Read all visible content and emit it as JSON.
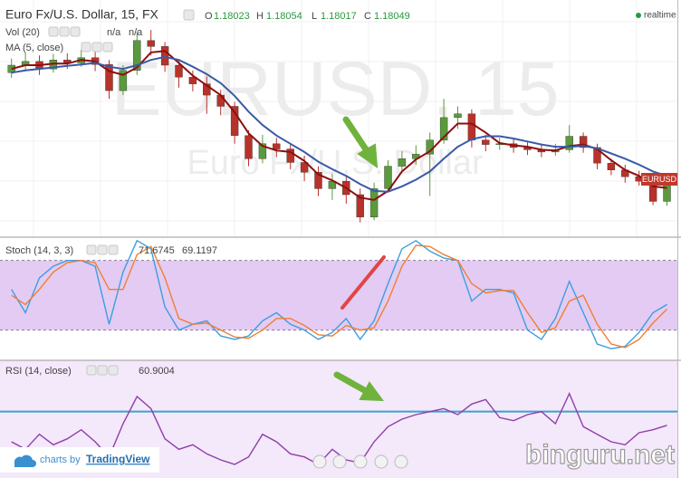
{
  "chart_data": [
    {
      "type": "candlestick",
      "title": "Euro Fx/U.S. Dollar, 15, FX",
      "ohlc_labels": [
        "O",
        "H",
        "L",
        "C"
      ],
      "status": "realtime",
      "volume_title": "Vol (20)",
      "volume_values": [
        "n/a",
        "n/a"
      ],
      "watermark": "EURUSD, 15",
      "watermark_subtitle": "Euro Fx/U.S. Dollar",
      "symbol_label": "EURUSD",
      "ylim": [
        1.1798,
        1.1828
      ],
      "grid": true,
      "up_color": "#5a9a3c",
      "down_color": "#b8322a",
      "open": [
        1.18195,
        1.18205,
        1.1821,
        1.182,
        1.18212,
        1.18208,
        1.18215,
        1.18206,
        1.18171,
        1.18198,
        1.18238,
        1.1823,
        1.18205,
        1.18189,
        1.1818,
        1.18165,
        1.1815,
        1.18111,
        1.1808,
        1.181,
        1.18093,
        1.18075,
        1.18062,
        1.1804,
        1.1805,
        1.18032,
        1.18002,
        1.1804,
        1.1807,
        1.1808,
        1.18086,
        1.18105,
        1.18135,
        1.1814,
        1.18105,
        1.18099,
        1.181,
        1.18095,
        1.18092,
        1.18089,
        1.18092,
        1.1811,
        1.18095,
        1.18074,
        1.18065,
        1.18056,
        1.1805,
        1.18023
      ],
      "high": [
        1.18214,
        1.18222,
        1.18218,
        1.1822,
        1.18221,
        1.18226,
        1.18224,
        1.18212,
        1.18205,
        1.1825,
        1.18252,
        1.18236,
        1.18212,
        1.18198,
        1.1819,
        1.18172,
        1.18156,
        1.18118,
        1.18112,
        1.18108,
        1.181,
        1.18084,
        1.1807,
        1.1806,
        1.18058,
        1.1804,
        1.18048,
        1.18078,
        1.1809,
        1.18098,
        1.18115,
        1.1816,
        1.1815,
        1.18146,
        1.18112,
        1.18108,
        1.18106,
        1.18102,
        1.18098,
        1.181,
        1.18125,
        1.18115,
        1.181,
        1.1808,
        1.18072,
        1.18064,
        1.18058,
        1.18054
      ],
      "low": [
        1.18188,
        1.18198,
        1.18192,
        1.18195,
        1.182,
        1.18203,
        1.18197,
        1.1816,
        1.18165,
        1.18192,
        1.18218,
        1.18196,
        1.18175,
        1.1817,
        1.1814,
        1.18138,
        1.181,
        1.1807,
        1.18074,
        1.18082,
        1.18066,
        1.1805,
        1.1803,
        1.18025,
        1.1802,
        1.17995,
        1.17998,
        1.18035,
        1.18062,
        1.18072,
        1.1803,
        1.181,
        1.1812,
        1.18095,
        1.1809,
        1.18092,
        1.18088,
        1.18085,
        1.18082,
        1.18084,
        1.18088,
        1.18088,
        1.18066,
        1.18058,
        1.18048,
        1.18044,
        1.18018,
        1.18017
      ],
      "close": [
        1.18205,
        1.1821,
        1.182,
        1.18212,
        1.18208,
        1.18215,
        1.18206,
        1.18171,
        1.18198,
        1.18238,
        1.1823,
        1.18205,
        1.18189,
        1.1818,
        1.18165,
        1.1815,
        1.18111,
        1.1808,
        1.181,
        1.18093,
        1.18075,
        1.18062,
        1.1804,
        1.1805,
        1.18032,
        1.18002,
        1.1804,
        1.1807,
        1.1808,
        1.18086,
        1.18105,
        1.18135,
        1.1814,
        1.18105,
        1.18099,
        1.181,
        1.18095,
        1.18092,
        1.18089,
        1.18092,
        1.1811,
        1.18095,
        1.18074,
        1.18065,
        1.18056,
        1.1805,
        1.18023,
        1.18049
      ],
      "series": [
        {
          "name": "MA (5, close)",
          "color": "#8b1010",
          "values": [
            1.182,
            1.18205,
            1.18205,
            1.18207,
            1.18207,
            1.18212,
            1.1821,
            1.18197,
            1.18192,
            1.18202,
            1.18222,
            1.18224,
            1.18208,
            1.18191,
            1.18178,
            1.18165,
            1.18142,
            1.18114,
            1.18097,
            1.18091,
            1.18089,
            1.18077,
            1.18059,
            1.18051,
            1.18041,
            1.18028,
            1.18025,
            1.18037,
            1.18063,
            1.18079,
            1.1809,
            1.18109,
            1.18127,
            1.18127,
            1.18115,
            1.18101,
            1.18098,
            1.18096,
            1.18092,
            1.18091,
            1.18097,
            1.18099,
            1.18093,
            1.18078,
            1.18065,
            1.18057,
            1.18043,
            1.18041
          ]
        },
        {
          "color": "#3a5aa8",
          "values": [
            1.18195,
            1.18198,
            1.182,
            1.18202,
            1.18204,
            1.18206,
            1.18208,
            1.18203,
            1.182,
            1.18205,
            1.18212,
            1.18216,
            1.18212,
            1.18203,
            1.18193,
            1.18181,
            1.18164,
            1.18143,
            1.18125,
            1.18111,
            1.181,
            1.18089,
            1.18076,
            1.18066,
            1.18057,
            1.18046,
            1.18037,
            1.18036,
            1.18043,
            1.18052,
            1.18063,
            1.1808,
            1.18096,
            1.18106,
            1.1811,
            1.1811,
            1.18107,
            1.18103,
            1.18099,
            1.18096,
            1.18096,
            1.18097,
            1.18094,
            1.18087,
            1.1808,
            1.18072,
            1.18063,
            1.18057
          ]
        }
      ]
    },
    {
      "type": "line",
      "title": "Stoch (14, 3, 3)",
      "ylim": [
        -6,
        100
      ],
      "levels": [
        80,
        20
      ],
      "level_style": "dashed",
      "level_color": "#8a7a96",
      "band_color": "#e3cbf3",
      "series": [
        {
          "color": "#3d9ee0",
          "readout": 71.6745,
          "values": [
            55,
            35,
            65,
            75,
            80,
            80,
            75,
            25,
            70,
            97,
            90,
            40,
            20,
            25,
            28,
            15,
            12,
            15,
            28,
            35,
            25,
            20,
            12,
            18,
            30,
            12,
            28,
            60,
            90,
            97,
            88,
            82,
            80,
            45,
            55,
            55,
            52,
            20,
            12,
            30,
            62,
            35,
            8,
            4,
            6,
            18,
            35,
            42
          ]
        },
        {
          "color": "#f08030",
          "readout": 69.1197,
          "values": [
            50,
            42,
            55,
            70,
            78,
            80,
            78,
            55,
            55,
            85,
            92,
            65,
            30,
            25,
            26,
            20,
            14,
            13,
            20,
            30,
            30,
            24,
            16,
            15,
            24,
            20,
            22,
            45,
            75,
            93,
            92,
            85,
            80,
            60,
            52,
            54,
            54,
            35,
            18,
            22,
            45,
            50,
            25,
            8,
            5,
            12,
            26,
            38
          ]
        }
      ]
    },
    {
      "type": "line",
      "title": "RSI (14, close)",
      "ylim": [
        26,
        104
      ],
      "levels": [
        70
      ],
      "level_style": "solid",
      "level_color": "#3fa1c9",
      "background": "#f4e8fb",
      "series": [
        {
          "color": "#8e3fa8",
          "readout": 60.9004,
          "values": [
            50,
            45,
            55,
            48,
            52,
            58,
            50,
            40,
            62,
            80,
            72,
            52,
            45,
            48,
            42,
            38,
            35,
            40,
            55,
            50,
            42,
            40,
            35,
            45,
            38,
            36,
            50,
            60,
            65,
            68,
            70,
            72,
            68,
            75,
            78,
            66,
            64,
            68,
            70,
            62,
            82,
            60,
            55,
            50,
            48,
            56,
            58,
            60.9
          ]
        }
      ]
    }
  ],
  "branding": {
    "prefix": "charts by",
    "name": "TradingView"
  },
  "site": "binguru.net"
}
